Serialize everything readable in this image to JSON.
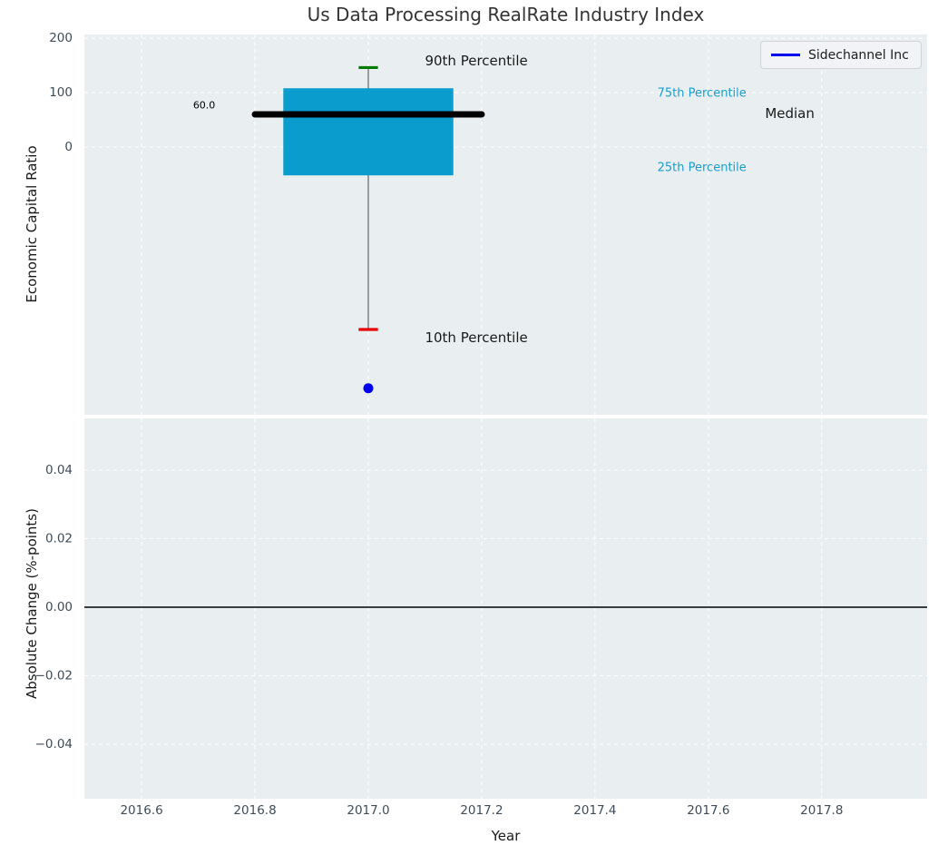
{
  "figure": {
    "title": "Us Data Processing RealRate Industry Index",
    "background": "#ffffff",
    "axes_background": "#e9eef0",
    "grid_color": "#ffffff",
    "tick_color": "#3e4c59",
    "title_color": "#333333"
  },
  "legend": {
    "label": "Sidechannel Inc",
    "line_color": "#0000ee"
  },
  "chart_data": [
    {
      "type": "box",
      "title": "Us Data Processing RealRate Industry Index",
      "ylabel": "Economic Capital Ratio",
      "xlim": [
        2016.499,
        2017.986
      ],
      "ylim": [
        -491.7,
        206.7
      ],
      "grid": true,
      "legend_position": "upper right",
      "yticks": [
        0,
        100,
        200
      ],
      "ytick_labels": [
        "0",
        "100",
        "200"
      ],
      "xticks": [
        2016.6,
        2016.8,
        2017.0,
        2017.2,
        2017.4,
        2017.6,
        2017.8
      ],
      "show_xtick_labels": false,
      "box": {
        "x_center": 2017.0,
        "box_left": 2016.85,
        "box_right": 2017.15,
        "p10": -335,
        "p25": -52,
        "median": 60.0,
        "p75": 108,
        "p90": 146,
        "median_label": "60.0",
        "median_line_left": 2016.8,
        "median_line_right": 2017.2,
        "cap_halfwidth": 0.017,
        "box_color": "#0a9ccd",
        "median_color": "#000000",
        "p90_color": "#007d00",
        "p10_color": "#e60000",
        "whisker_color": "#666666"
      },
      "company_point": {
        "name": "Sidechannel Inc",
        "x": 2017.0,
        "y": -443,
        "color": "#0000ee",
        "radius": 5.5
      },
      "annotations": [
        {
          "text": "90th Percentile",
          "x": 2017.1,
          "y": 158,
          "color": "#1a1a1a",
          "size": 15,
          "anchor": "start"
        },
        {
          "text": "75th Percentile",
          "x": 2017.51,
          "y": 98,
          "color": "#1b9ccd",
          "size": 13,
          "anchor": "start"
        },
        {
          "text": "Median",
          "x": 2017.7,
          "y": 62,
          "color": "#1a1a1a",
          "size": 15,
          "anchor": "start"
        },
        {
          "text": "25th Percentile",
          "x": 2017.51,
          "y": -38,
          "color": "#1b9ccd",
          "size": 13,
          "anchor": "start"
        },
        {
          "text": "10th Percentile",
          "x": 2017.1,
          "y": -350,
          "color": "#1a1a1a",
          "size": 15,
          "anchor": "start"
        },
        {
          "text": "60.0",
          "x": 2016.73,
          "y": 77,
          "color": "#000000",
          "size": 11,
          "anchor": "end"
        }
      ]
    },
    {
      "type": "line",
      "ylabel": "Absolute Change (%-points)",
      "xlabel": "Year",
      "xlim": [
        2016.499,
        2017.986
      ],
      "ylim": [
        -0.0559,
        0.0551
      ],
      "grid": true,
      "zero_line": true,
      "zero_line_color": "#000000",
      "yticks": [
        -0.04,
        -0.02,
        0.0,
        0.02,
        0.04
      ],
      "ytick_labels": [
        "−0.04",
        "−0.02",
        "0.00",
        "0.02",
        "0.04"
      ],
      "xticks": [
        2016.6,
        2016.8,
        2017.0,
        2017.2,
        2017.4,
        2017.6,
        2017.8
      ],
      "xtick_labels": [
        "2016.6",
        "2016.8",
        "2017.0",
        "2017.2",
        "2017.4",
        "2017.6",
        "2017.8"
      ],
      "show_xtick_labels": true,
      "series": []
    }
  ]
}
